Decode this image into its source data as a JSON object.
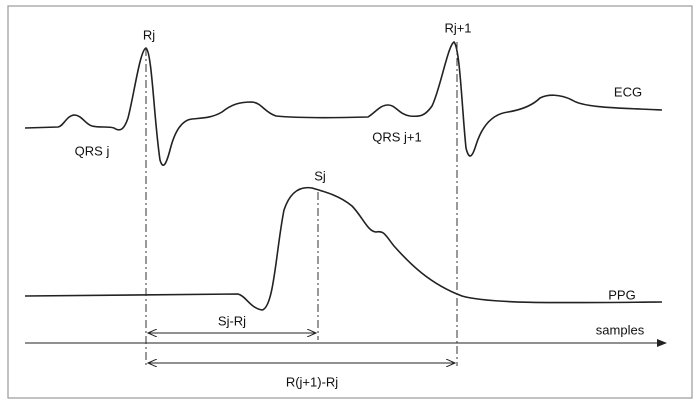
{
  "labels": {
    "r_j": "Rj",
    "r_j1": "Rj+1",
    "ecg": "ECG",
    "qrs_j": "QRS j",
    "qrs_j1": "QRS j+1",
    "s_j": "Sj",
    "ppg": "PPG",
    "sj_rj": "Sj-Rj",
    "samples": "samples",
    "rj1_rj": "R(j+1)-Rj"
  }
}
